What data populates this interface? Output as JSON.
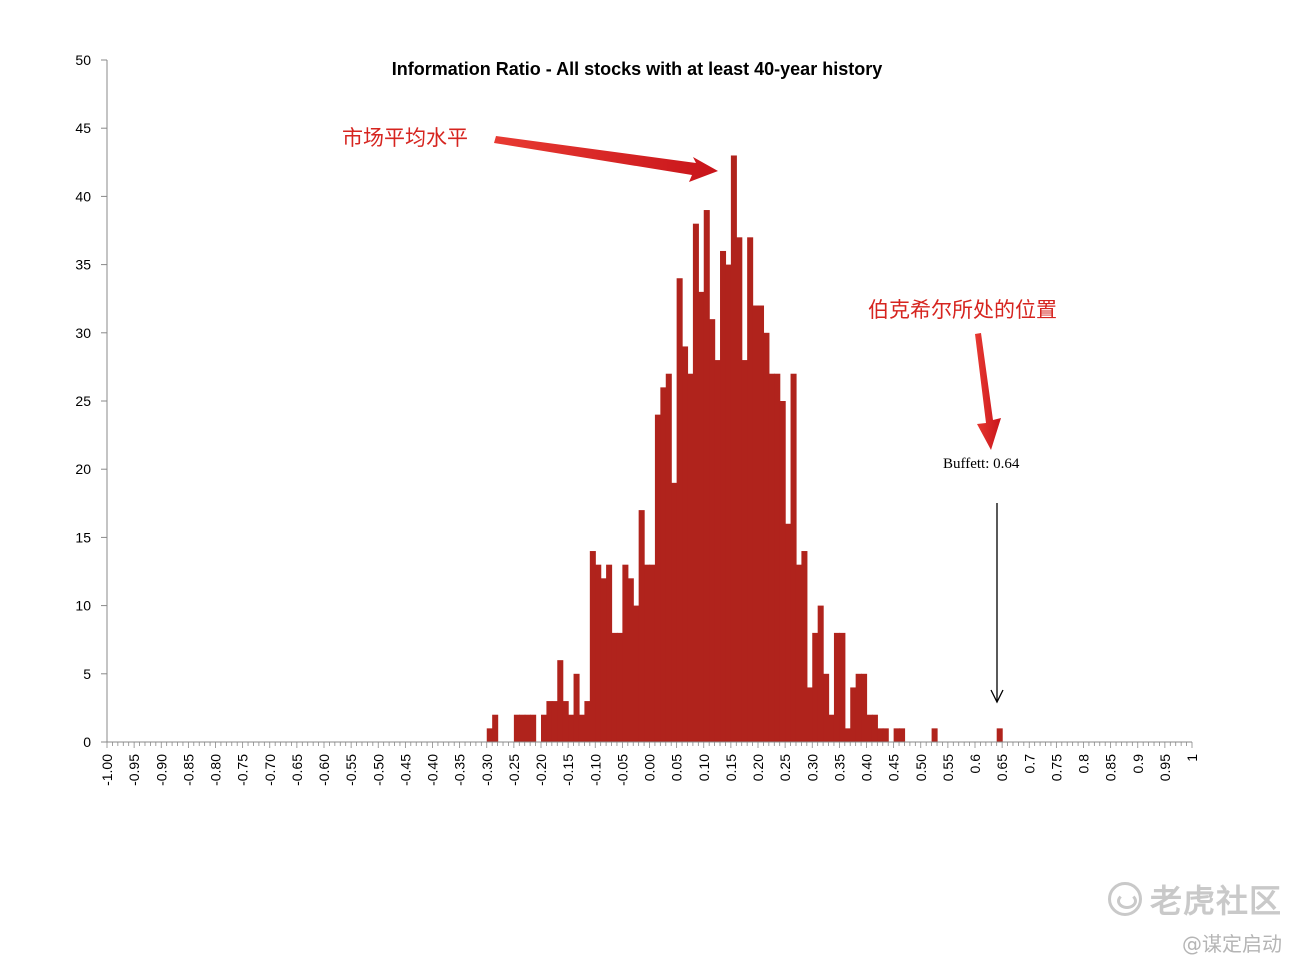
{
  "chart_data": {
    "type": "bar",
    "title": "Information Ratio - All stocks with at least 40-year history",
    "xlabel": "",
    "ylabel": "",
    "xlim": [
      -1.0,
      1.0
    ],
    "ylim": [
      0,
      50
    ],
    "bin_width": 0.01,
    "bar_color": "#b0231c",
    "grid": false,
    "legend": "none",
    "x_tick_labels": [
      "-1.00",
      "-0.95",
      "-0.90",
      "-0.85",
      "-0.80",
      "-0.75",
      "-0.70",
      "-0.65",
      "-0.60",
      "-0.55",
      "-0.50",
      "-0.45",
      "-0.40",
      "-0.35",
      "-0.30",
      "-0.25",
      "-0.20",
      "-0.15",
      "-0.10",
      "-0.05",
      "0.00",
      "0.05",
      "0.10",
      "0.15",
      "0.20",
      "0.25",
      "0.30",
      "0.35",
      "0.40",
      "0.45",
      "0.50",
      "0.55",
      "0.6",
      "0.65",
      "0.7",
      "0.75",
      "0.8",
      "0.85",
      "0.9",
      "0.95",
      "1"
    ],
    "y_ticks": [
      0,
      5,
      10,
      15,
      20,
      25,
      30,
      35,
      40,
      45,
      50
    ],
    "x": [
      -0.3,
      -0.29,
      -0.25,
      -0.24,
      -0.23,
      -0.22,
      -0.2,
      -0.19,
      -0.18,
      -0.17,
      -0.16,
      -0.15,
      -0.14,
      -0.13,
      -0.12,
      -0.11,
      -0.1,
      -0.09,
      -0.08,
      -0.07,
      -0.06,
      -0.05,
      -0.04,
      -0.03,
      -0.02,
      -0.01,
      0.0,
      0.01,
      0.02,
      0.03,
      0.04,
      0.05,
      0.06,
      0.07,
      0.08,
      0.09,
      0.1,
      0.11,
      0.12,
      0.13,
      0.14,
      0.15,
      0.16,
      0.17,
      0.18,
      0.19,
      0.2,
      0.21,
      0.22,
      0.23,
      0.24,
      0.25,
      0.26,
      0.27,
      0.28,
      0.29,
      0.3,
      0.31,
      0.32,
      0.33,
      0.34,
      0.35,
      0.36,
      0.37,
      0.38,
      0.39,
      0.4,
      0.41,
      0.42,
      0.43,
      0.45,
      0.46,
      0.52,
      0.64
    ],
    "values": [
      1,
      2,
      2,
      2,
      2,
      2,
      2,
      3,
      3,
      6,
      3,
      2,
      5,
      2,
      3,
      14,
      13,
      12,
      13,
      8,
      8,
      13,
      12,
      10,
      17,
      13,
      13,
      24,
      26,
      27,
      19,
      34,
      29,
      27,
      38,
      33,
      39,
      31,
      28,
      36,
      35,
      43,
      37,
      28,
      37,
      32,
      32,
      30,
      27,
      27,
      25,
      16,
      27,
      13,
      14,
      4,
      8,
      10,
      5,
      2,
      8,
      8,
      1,
      4,
      5,
      5,
      2,
      2,
      1,
      1,
      1,
      1,
      1,
      1
    ]
  },
  "annotations": {
    "market_average": "市场平均水平",
    "buffett_position": "伯克希尔所处的位置",
    "buffett_label": "Buffett: 0.64"
  },
  "watermark": {
    "brand": "老虎社区",
    "author": "@谋定启动"
  },
  "colors": {
    "bars": "#b0231c",
    "annotation_red": "#d6241f",
    "watermark": "#c9c9c9"
  }
}
